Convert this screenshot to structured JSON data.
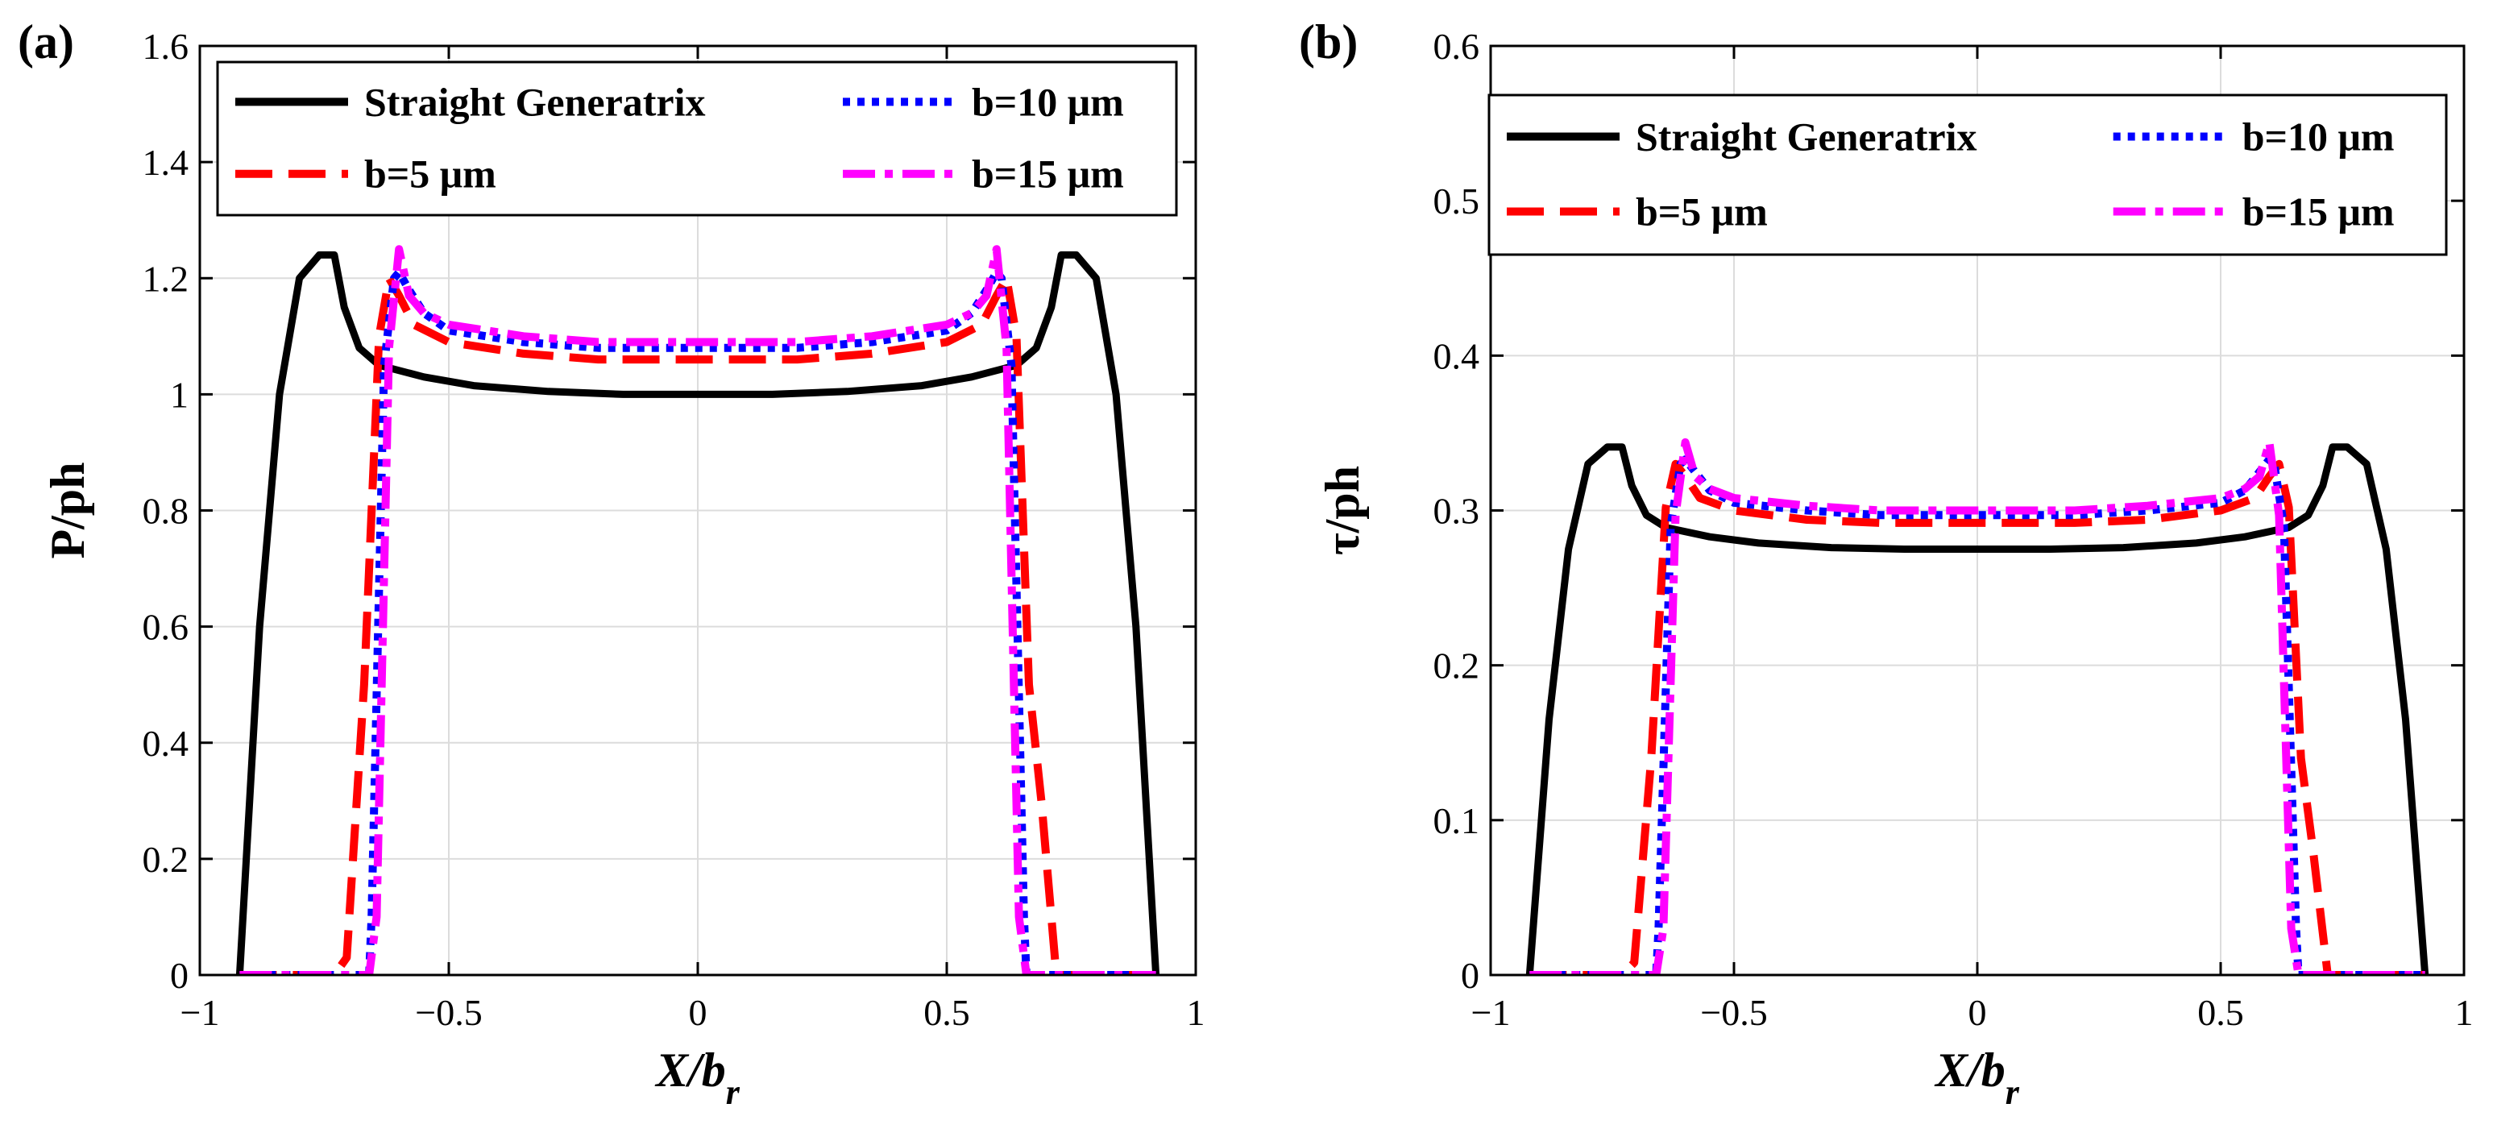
{
  "chart_data": [
    {
      "type": "line",
      "panel_label": "(a)",
      "title": "",
      "xlabel": "X/b",
      "xlabel_sub": "r",
      "ylabel": "P/ph",
      "xlim": [
        -1,
        1
      ],
      "ylim": [
        0,
        1.6
      ],
      "xticks": [
        -1,
        -0.5,
        0,
        0.5,
        1
      ],
      "xtick_labels": [
        "−1",
        "−0.5",
        "0",
        "0.5",
        "1"
      ],
      "yticks": [
        0,
        0.2,
        0.4,
        0.6,
        0.8,
        1,
        1.2,
        1.4,
        1.6
      ],
      "ytick_labels": [
        "0",
        "0.2",
        "0.4",
        "0.6",
        "0.8",
        "1",
        "1.2",
        "1.4",
        "1.6"
      ],
      "grid": true,
      "legend_position": "top",
      "series": [
        {
          "name": "Straight Generatrix",
          "color": "#000000",
          "style": "solid",
          "x": [
            -0.92,
            -0.88,
            -0.84,
            -0.8,
            -0.76,
            -0.73,
            -0.71,
            -0.68,
            -0.64,
            -0.55,
            -0.45,
            -0.3,
            -0.15,
            0,
            0.15,
            0.3,
            0.45,
            0.55,
            0.64,
            0.68,
            0.71,
            0.73,
            0.76,
            0.8,
            0.84,
            0.88,
            0.92
          ],
          "y": [
            0,
            0.6,
            1.0,
            1.2,
            1.24,
            1.24,
            1.15,
            1.08,
            1.05,
            1.03,
            1.015,
            1.005,
            1.0,
            1.0,
            1.0,
            1.005,
            1.015,
            1.03,
            1.05,
            1.08,
            1.15,
            1.24,
            1.24,
            1.2,
            1.0,
            0.6,
            0
          ]
        },
        {
          "name": "b=5 μm",
          "color": "#ff0000",
          "style": "dash",
          "x": [
            -0.92,
            -0.73,
            -0.705,
            -0.67,
            -0.64,
            -0.62,
            -0.6,
            -0.57,
            -0.5,
            -0.35,
            -0.2,
            0,
            0.2,
            0.35,
            0.5,
            0.57,
            0.6,
            0.62,
            0.64,
            0.665,
            0.69,
            0.72,
            0.92
          ],
          "y": [
            0,
            0,
            0.03,
            0.5,
            1.1,
            1.2,
            1.17,
            1.12,
            1.09,
            1.07,
            1.06,
            1.06,
            1.06,
            1.07,
            1.09,
            1.12,
            1.17,
            1.2,
            1.1,
            0.5,
            0.3,
            0,
            0
          ]
        },
        {
          "name": "b=10 μm",
          "color": "#0000ff",
          "style": "dot",
          "x": [
            -0.92,
            -0.66,
            -0.655,
            -0.63,
            -0.61,
            -0.6,
            -0.58,
            -0.55,
            -0.5,
            -0.35,
            -0.2,
            0,
            0.2,
            0.35,
            0.5,
            0.55,
            0.58,
            0.6,
            0.61,
            0.63,
            0.655,
            0.66,
            0.92
          ],
          "y": [
            0,
            0,
            0.1,
            1.05,
            1.2,
            1.21,
            1.18,
            1.14,
            1.11,
            1.09,
            1.08,
            1.08,
            1.08,
            1.09,
            1.11,
            1.14,
            1.18,
            1.21,
            1.2,
            1.05,
            0.1,
            0,
            0
          ]
        },
        {
          "name": "b=15 μm",
          "color": "#ff00ff",
          "style": "dashdot",
          "x": [
            -0.92,
            -0.66,
            -0.645,
            -0.62,
            -0.6,
            -0.58,
            -0.55,
            -0.5,
            -0.35,
            -0.2,
            0,
            0.2,
            0.35,
            0.5,
            0.55,
            0.58,
            0.6,
            0.62,
            0.645,
            0.66,
            0.92
          ],
          "y": [
            0,
            0,
            0.1,
            1.08,
            1.25,
            1.17,
            1.14,
            1.12,
            1.1,
            1.09,
            1.09,
            1.09,
            1.1,
            1.12,
            1.14,
            1.17,
            1.25,
            1.08,
            0.1,
            0,
            0
          ]
        }
      ]
    },
    {
      "type": "line",
      "panel_label": "(b)",
      "title": "",
      "xlabel": "X/b",
      "xlabel_sub": "r",
      "ylabel": "τ/ph",
      "xlim": [
        -1,
        1
      ],
      "ylim": [
        0,
        0.6
      ],
      "xticks": [
        -1,
        -0.5,
        0,
        0.5,
        1
      ],
      "xtick_labels": [
        "−1",
        "−0.5",
        "0",
        "0.5",
        "1"
      ],
      "yticks": [
        0,
        0.1,
        0.2,
        0.3,
        0.4,
        0.5,
        0.6
      ],
      "ytick_labels": [
        "0",
        "0.1",
        "0.2",
        "0.3",
        "0.4",
        "0.5",
        "0.6"
      ],
      "grid": true,
      "legend_position": "top",
      "series": [
        {
          "name": "Straight Generatrix",
          "color": "#000000",
          "style": "solid",
          "x": [
            -0.92,
            -0.88,
            -0.84,
            -0.8,
            -0.76,
            -0.73,
            -0.71,
            -0.68,
            -0.64,
            -0.55,
            -0.45,
            -0.3,
            -0.15,
            0,
            0.15,
            0.3,
            0.45,
            0.55,
            0.64,
            0.68,
            0.71,
            0.73,
            0.76,
            0.8,
            0.84,
            0.88,
            0.92
          ],
          "y": [
            0,
            0.165,
            0.275,
            0.33,
            0.341,
            0.341,
            0.316,
            0.297,
            0.289,
            0.283,
            0.279,
            0.276,
            0.275,
            0.275,
            0.275,
            0.276,
            0.279,
            0.283,
            0.289,
            0.297,
            0.316,
            0.341,
            0.341,
            0.33,
            0.275,
            0.165,
            0
          ]
        },
        {
          "name": "b=5 μm",
          "color": "#ff0000",
          "style": "dash",
          "x": [
            -0.92,
            -0.73,
            -0.705,
            -0.67,
            -0.64,
            -0.62,
            -0.6,
            -0.57,
            -0.5,
            -0.35,
            -0.2,
            0,
            0.2,
            0.35,
            0.5,
            0.57,
            0.6,
            0.62,
            0.64,
            0.665,
            0.69,
            0.72,
            0.92
          ],
          "y": [
            0,
            0,
            0.008,
            0.14,
            0.302,
            0.33,
            0.322,
            0.308,
            0.3,
            0.294,
            0.292,
            0.292,
            0.292,
            0.294,
            0.3,
            0.308,
            0.322,
            0.33,
            0.302,
            0.14,
            0.08,
            0,
            0
          ]
        },
        {
          "name": "b=10 μm",
          "color": "#0000ff",
          "style": "dot",
          "x": [
            -0.92,
            -0.66,
            -0.655,
            -0.63,
            -0.61,
            -0.6,
            -0.58,
            -0.55,
            -0.5,
            -0.35,
            -0.2,
            0,
            0.2,
            0.35,
            0.5,
            0.55,
            0.58,
            0.6,
            0.61,
            0.63,
            0.655,
            0.66,
            0.92
          ],
          "y": [
            0,
            0,
            0.03,
            0.29,
            0.33,
            0.333,
            0.325,
            0.313,
            0.305,
            0.3,
            0.297,
            0.297,
            0.297,
            0.3,
            0.305,
            0.313,
            0.325,
            0.333,
            0.33,
            0.29,
            0.03,
            0,
            0
          ]
        },
        {
          "name": "b=15 μm",
          "color": "#ff00ff",
          "style": "dashdot",
          "x": [
            -0.92,
            -0.66,
            -0.645,
            -0.62,
            -0.6,
            -0.58,
            -0.55,
            -0.5,
            -0.35,
            -0.2,
            0,
            0.2,
            0.35,
            0.5,
            0.55,
            0.58,
            0.6,
            0.62,
            0.645,
            0.66,
            0.92
          ],
          "y": [
            0,
            0,
            0.03,
            0.297,
            0.344,
            0.322,
            0.314,
            0.308,
            0.303,
            0.3,
            0.3,
            0.3,
            0.303,
            0.308,
            0.314,
            0.322,
            0.344,
            0.297,
            0.03,
            0,
            0
          ]
        }
      ]
    }
  ]
}
